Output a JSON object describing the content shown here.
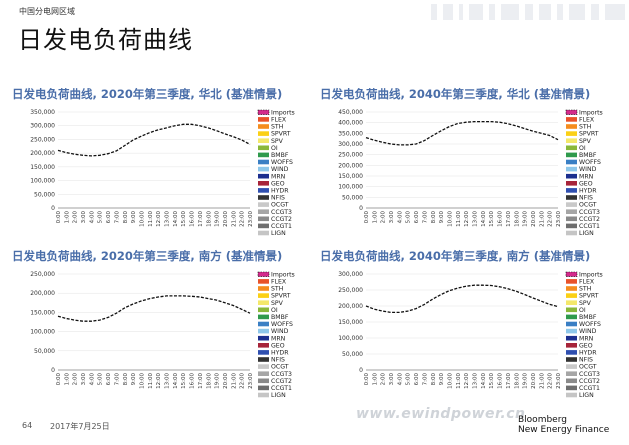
{
  "header": {
    "label": "中国分电网区域",
    "title": "日发电负荷曲线"
  },
  "legend_items": [
    "Imports",
    "FLEX",
    "STH",
    "SPVRT",
    "SPV",
    "OI",
    "BMBF",
    "WOFFS",
    "WIND",
    "MRN",
    "GEO",
    "HYDR",
    "NFIS",
    "OCGT",
    "CCGT3",
    "CCGT2",
    "CCGT1",
    "LIGN"
  ],
  "legend_colors": [
    "#d42a8c",
    "#e8522a",
    "#f58c1e",
    "#fbd015",
    "#f4e86a",
    "#8ab83a",
    "#2f9a4c",
    "#3a7fc4",
    "#8ec7ea",
    "#1c2f8f",
    "#a7243a",
    "#2f4fb0",
    "#333333",
    "#c9c9c9",
    "#a6a6a6",
    "#8a8a8a",
    "#6e6e6e",
    "#c5c5c5"
  ],
  "x_ticks": [
    "0:00",
    "1:00",
    "2:00",
    "3:00",
    "4:00",
    "5:00",
    "6:00",
    "7:00",
    "8:00",
    "9:00",
    "10:00",
    "11:00",
    "12:00",
    "13:00",
    "14:00",
    "15:00",
    "16:00",
    "17:00",
    "18:00",
    "19:00",
    "20:00",
    "21:00",
    "22:00",
    "23:00"
  ],
  "chart_data": [
    {
      "type": "area",
      "title": "日发电负荷曲线, 2020年第三季度, 华北 (基准情景)",
      "ylim": [
        0,
        350000
      ],
      "yticks": [
        "0",
        "50,000",
        "100,000",
        "150,000",
        "200,000",
        "250,000",
        "300,000",
        "350,000"
      ],
      "series": [
        {
          "values": [
            210000,
            202000,
            196000,
            192000,
            190000,
            192000,
            198000,
            208000,
            228000,
            248000,
            262000,
            275000,
            285000,
            292000,
            300000,
            305000,
            305000,
            300000,
            292000,
            282000,
            270000,
            260000,
            248000,
            232000
          ]
        }
      ]
    },
    {
      "type": "area",
      "title": "日发电负荷曲线, 2040年第三季度, 华北 (基准情景)",
      "ylim": [
        0,
        450000
      ],
      "yticks": [
        "0",
        "50,000",
        "100,000",
        "150,000",
        "200,000",
        "250,000",
        "300,000",
        "350,000",
        "400,000",
        "450,000"
      ],
      "series": [
        {
          "values": [
            330000,
            318000,
            308000,
            300000,
            296000,
            296000,
            300000,
            316000,
            340000,
            362000,
            382000,
            396000,
            402000,
            405000,
            405000,
            405000,
            402000,
            395000,
            385000,
            372000,
            360000,
            350000,
            340000,
            320000
          ]
        }
      ]
    },
    {
      "type": "area",
      "title": "日发电负荷曲线, 2020年第三季度, 南方 (基准情景)",
      "ylim": [
        0,
        250000
      ],
      "yticks": [
        "0",
        "50,000",
        "100,000",
        "150,000",
        "200,000",
        "250,000"
      ],
      "series": [
        {
          "values": [
            140000,
            134000,
            130000,
            127000,
            127000,
            130000,
            137000,
            148000,
            162000,
            172000,
            180000,
            186000,
            190000,
            193000,
            193000,
            193000,
            192000,
            190000,
            186000,
            182000,
            175000,
            168000,
            158000,
            148000
          ]
        }
      ]
    },
    {
      "type": "area",
      "title": "日发电负荷曲线, 2040年第三季度, 南方 (基准情景)",
      "ylim": [
        0,
        300000
      ],
      "yticks": [
        "0",
        "50,000",
        "100,000",
        "150,000",
        "200,000",
        "250,000",
        "300,000"
      ],
      "series": [
        {
          "values": [
            200000,
            190000,
            184000,
            180000,
            180000,
            184000,
            192000,
            205000,
            222000,
            236000,
            248000,
            256000,
            262000,
            265000,
            265000,
            264000,
            260000,
            254000,
            246000,
            236000,
            225000,
            215000,
            205000,
            198000
          ]
        }
      ]
    }
  ],
  "footer": {
    "page": "64",
    "date": "2017年7月25日",
    "watermark": "www.ewindpower.cn",
    "brand_line1": "Bloomberg",
    "brand_line2": "New Energy Finance"
  }
}
